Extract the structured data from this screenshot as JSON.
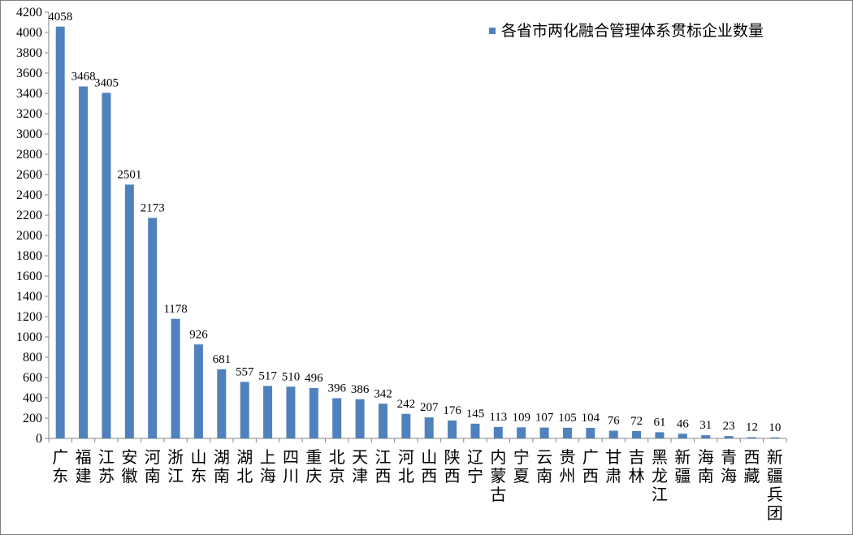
{
  "chart_data": {
    "type": "bar",
    "title": "",
    "xlabel": "",
    "ylabel": "",
    "ylim": [
      0,
      4200
    ],
    "ytick_step": 200,
    "grid": false,
    "legend_position": "top-right",
    "bar_color": "#4F81BD",
    "categories": [
      "广东",
      "福建",
      "江苏",
      "安徽",
      "河南",
      "浙江",
      "山东",
      "湖南",
      "湖北",
      "上海",
      "四川",
      "重庆",
      "北京",
      "天津",
      "江西",
      "河北",
      "山西",
      "陕西",
      "辽宁",
      "内蒙古",
      "宁夏",
      "云南",
      "贵州",
      "广西",
      "甘肃",
      "吉林",
      "黑龙江",
      "新疆",
      "海南",
      "青海",
      "西藏",
      "新疆兵团"
    ],
    "series": [
      {
        "name": "各省市两化融合管理体系贯标企业数量",
        "values": [
          4058,
          3468,
          3405,
          2501,
          2173,
          1178,
          926,
          681,
          557,
          517,
          510,
          496,
          396,
          386,
          342,
          242,
          207,
          176,
          145,
          113,
          109,
          107,
          105,
          104,
          76,
          72,
          61,
          46,
          31,
          23,
          12,
          10
        ]
      }
    ]
  }
}
